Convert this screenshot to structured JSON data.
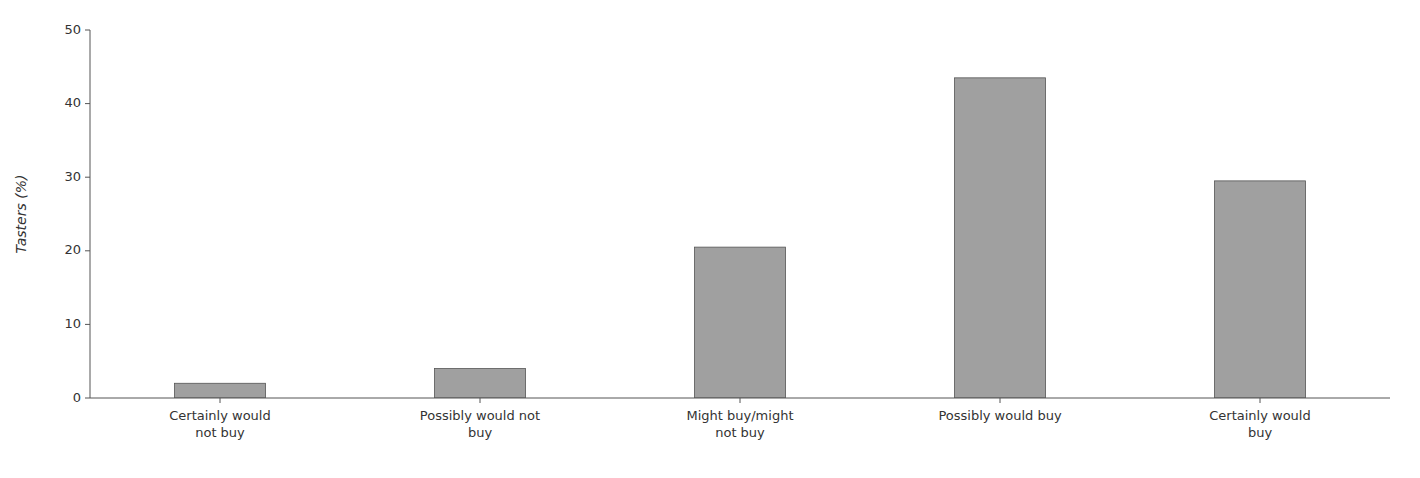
{
  "chart_data": {
    "type": "bar",
    "categories": [
      "Certainly would\nnot buy",
      "Possibly would not\nbuy",
      "Might buy/might\nnot buy",
      "Possibly would buy",
      "Certainly would\nbuy"
    ],
    "values": [
      2.0,
      4.0,
      20.5,
      43.5,
      29.5
    ],
    "color": "#a0a0a0",
    "ylabel": "Tasters (%)",
    "ylim": [
      0,
      50
    ],
    "yticks": [
      0,
      10,
      20,
      30,
      40,
      50
    ],
    "grid": false
  }
}
